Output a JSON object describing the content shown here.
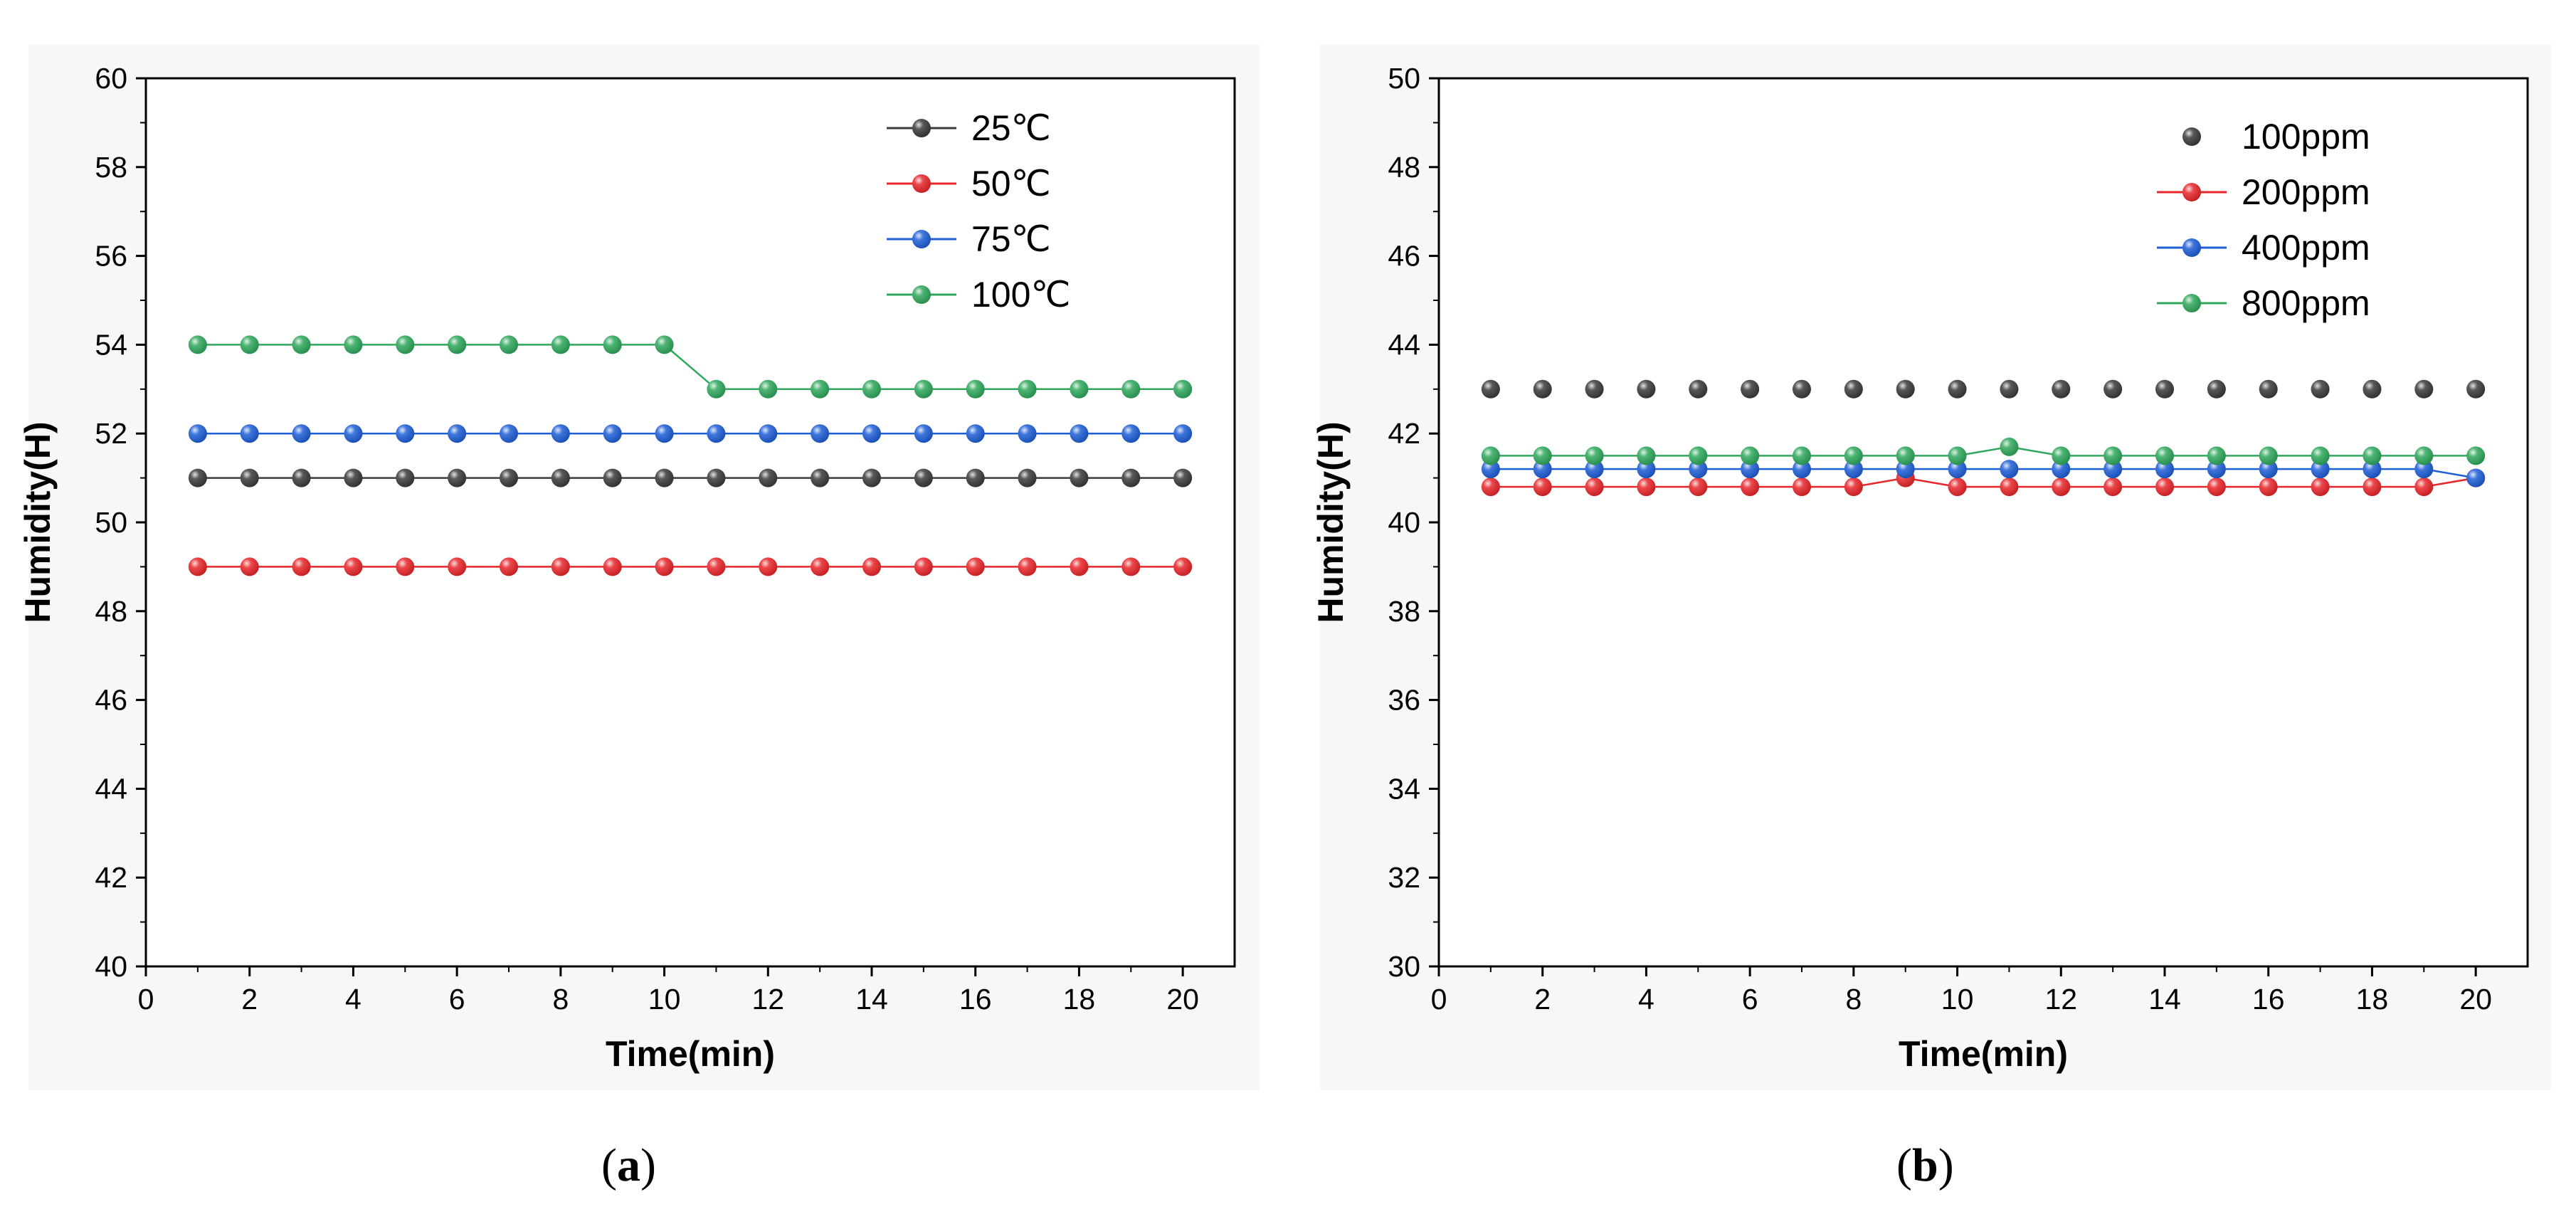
{
  "colors": {
    "black": "#3b3b3b",
    "red": "#e8262a",
    "blue": "#1f5fd6",
    "green": "#2fa85c"
  },
  "captions": {
    "a_open": "(",
    "a_letter": "a",
    "a_close": ")",
    "b_open": "(",
    "b_letter": "b",
    "b_close": ")"
  },
  "chart_data": [
    {
      "id": "a",
      "type": "line",
      "xlabel": "Time(min)",
      "ylabel": "Humidity(H)",
      "xlim": [
        0,
        21
      ],
      "ylim": [
        40,
        60
      ],
      "xticks": [
        0,
        2,
        4,
        6,
        8,
        10,
        12,
        14,
        16,
        18,
        20
      ],
      "yticks": [
        40,
        42,
        44,
        46,
        48,
        50,
        52,
        54,
        56,
        58,
        60
      ],
      "x": [
        1,
        2,
        3,
        4,
        5,
        6,
        7,
        8,
        9,
        10,
        11,
        12,
        13,
        14,
        15,
        16,
        17,
        18,
        19,
        20
      ],
      "legend_position": "top-right",
      "series": [
        {
          "name": "25℃",
          "color": "#3b3b3b",
          "line": true,
          "values": [
            51,
            51,
            51,
            51,
            51,
            51,
            51,
            51,
            51,
            51,
            51,
            51,
            51,
            51,
            51,
            51,
            51,
            51,
            51,
            51
          ]
        },
        {
          "name": "50℃",
          "color": "#e8262a",
          "line": true,
          "values": [
            49,
            49,
            49,
            49,
            49,
            49,
            49,
            49,
            49,
            49,
            49,
            49,
            49,
            49,
            49,
            49,
            49,
            49,
            49,
            49
          ]
        },
        {
          "name": "75℃",
          "color": "#1f5fd6",
          "line": true,
          "values": [
            52,
            52,
            52,
            52,
            52,
            52,
            52,
            52,
            52,
            52,
            52,
            52,
            52,
            52,
            52,
            52,
            52,
            52,
            52,
            52
          ]
        },
        {
          "name": "100℃",
          "color": "#2fa85c",
          "line": true,
          "values": [
            54,
            54,
            54,
            54,
            54,
            54,
            54,
            54,
            54,
            54,
            53,
            53,
            53,
            53,
            53,
            53,
            53,
            53,
            53,
            53
          ]
        }
      ]
    },
    {
      "id": "b",
      "type": "line",
      "xlabel": "Time(min)",
      "ylabel": "Humidity(H)",
      "xlim": [
        0,
        21
      ],
      "ylim": [
        30,
        50
      ],
      "xticks": [
        0,
        2,
        4,
        6,
        8,
        10,
        12,
        14,
        16,
        18,
        20
      ],
      "yticks": [
        30,
        32,
        34,
        36,
        38,
        40,
        42,
        44,
        46,
        48,
        50
      ],
      "x": [
        1,
        2,
        3,
        4,
        5,
        6,
        7,
        8,
        9,
        10,
        11,
        12,
        13,
        14,
        15,
        16,
        17,
        18,
        19,
        20
      ],
      "legend_position": "top-right",
      "series": [
        {
          "name": "100ppm",
          "color": "#3b3b3b",
          "line": false,
          "values": [
            43,
            43,
            43,
            43,
            43,
            43,
            43,
            43,
            43,
            43,
            43,
            43,
            43,
            43,
            43,
            43,
            43,
            43,
            43,
            43
          ]
        },
        {
          "name": "200ppm",
          "color": "#e8262a",
          "line": true,
          "values": [
            40.8,
            40.8,
            40.8,
            40.8,
            40.8,
            40.8,
            40.8,
            40.8,
            41,
            40.8,
            40.8,
            40.8,
            40.8,
            40.8,
            40.8,
            40.8,
            40.8,
            40.8,
            40.8,
            41
          ]
        },
        {
          "name": "400ppm",
          "color": "#1f5fd6",
          "line": true,
          "values": [
            41.2,
            41.2,
            41.2,
            41.2,
            41.2,
            41.2,
            41.2,
            41.2,
            41.2,
            41.2,
            41.2,
            41.2,
            41.2,
            41.2,
            41.2,
            41.2,
            41.2,
            41.2,
            41.2,
            41
          ]
        },
        {
          "name": "800ppm",
          "color": "#2fa85c",
          "line": true,
          "values": [
            41.5,
            41.5,
            41.5,
            41.5,
            41.5,
            41.5,
            41.5,
            41.5,
            41.5,
            41.5,
            41.7,
            41.5,
            41.5,
            41.5,
            41.5,
            41.5,
            41.5,
            41.5,
            41.5,
            41.5
          ]
        }
      ]
    }
  ]
}
